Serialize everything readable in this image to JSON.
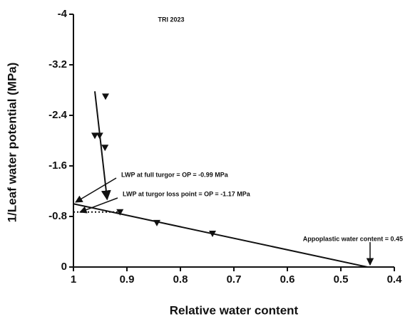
{
  "chart_data": {
    "type": "scatter",
    "title": "TRI 2023",
    "x_label": "Relative water content",
    "y_label": "1/Leaf water potential (MPa)",
    "xlim": [
      1,
      0.4
    ],
    "xticks": [
      1,
      0.9,
      0.8,
      0.7,
      0.6,
      0.5,
      0.4
    ],
    "ylim": [
      0,
      -4
    ],
    "yticks": [
      0,
      -0.8,
      -1.6,
      -2.4,
      -3.2,
      -4
    ],
    "series": [
      {
        "color": "#111111",
        "x": [
          0.96,
          0.951,
          0.94,
          0.941,
          0.913,
          0.844,
          0.74
        ],
        "values": [
          -2.08,
          -2.08,
          -2.7,
          -1.89,
          -0.87,
          -0.7,
          -0.53
        ]
      }
    ],
    "lines": [
      {
        "x": [
          0.96,
          0.937
        ],
        "values": [
          -2.78,
          -1.07
        ],
        "style": "solid"
      },
      {
        "x": [
          1,
          0.45
        ],
        "values": [
          -1.0,
          0
        ],
        "style": "solid"
      },
      {
        "x": [
          1,
          0.91
        ],
        "values": [
          -0.87,
          -0.87
        ],
        "style": "dotted"
      }
    ],
    "annotations": [
      "LWP at full turgor = OP = -0.99 MPa",
      "LWP at turgor loss point = OP = -1.17 MPa",
      "Appoplastic water content = 0.45"
    ]
  }
}
